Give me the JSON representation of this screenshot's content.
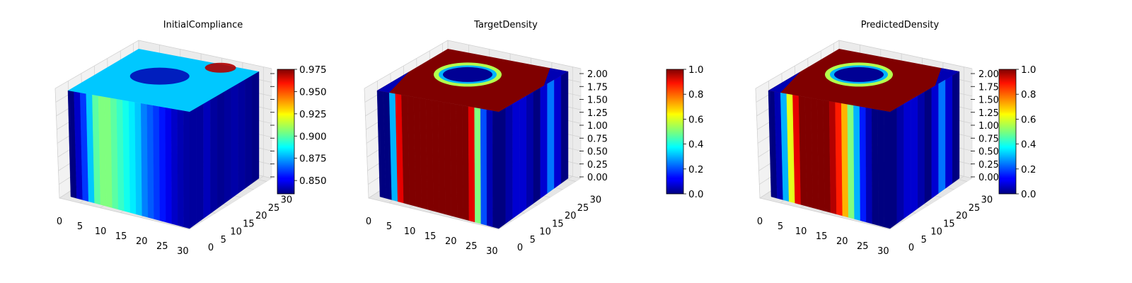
{
  "chart_data": [
    {
      "type": "3d-voxel",
      "title": "InitialCompliance",
      "xticks": [
        "0",
        "5",
        "10",
        "15",
        "20",
        "25",
        "30"
      ],
      "yticks": [
        "0",
        "5",
        "10",
        "15",
        "20",
        "25",
        "30"
      ],
      "zticks": [
        "",
        "",
        "",
        "",
        "",
        "",
        "",
        "",
        ""
      ],
      "xlim": [
        0,
        32
      ],
      "ylim": [
        0,
        32
      ],
      "zlim": [
        0,
        2
      ],
      "colorbar": {
        "min": 0.835,
        "max": 0.975,
        "ticks": [
          "0.850",
          "0.875",
          "0.900",
          "0.925",
          "0.950",
          "0.975"
        ],
        "tick_values": [
          0.85,
          0.875,
          0.9,
          0.925,
          0.95,
          0.975
        ]
      },
      "front_face_profile": [
        0.835,
        0.845,
        0.86,
        0.88,
        0.9,
        0.905,
        0.905,
        0.9,
        0.895,
        0.89,
        0.885,
        0.88,
        0.87,
        0.865,
        0.86,
        0.855,
        0.85,
        0.845,
        0.842,
        0.84
      ],
      "side_face_profile": [
        0.84,
        0.84,
        0.845,
        0.84,
        0.838,
        0.84,
        0.842,
        0.84,
        0.838,
        0.836
      ],
      "colormap": "jet",
      "grid": true
    },
    {
      "type": "3d-voxel",
      "title": "TargetDensity",
      "xticks": [
        "0",
        "5",
        "10",
        "15",
        "20",
        "25",
        "30"
      ],
      "yticks": [
        "0",
        "5",
        "10",
        "15",
        "20",
        "25",
        "30"
      ],
      "zticks": [
        "0.00",
        "0.25",
        "0.50",
        "0.75",
        "1.00",
        "1.25",
        "1.50",
        "1.75",
        "2.00"
      ],
      "xlim": [
        0,
        32
      ],
      "ylim": [
        0,
        32
      ],
      "zlim": [
        0,
        2
      ],
      "colorbar": {
        "min": 0.0,
        "max": 1.0,
        "ticks": [
          "0.0",
          "0.2",
          "0.4",
          "0.6",
          "0.8",
          "1.0"
        ],
        "tick_values": [
          0.0,
          0.2,
          0.4,
          0.6,
          0.8,
          1.0
        ]
      },
      "front_face_profile": [
        0.0,
        0.0,
        0.3,
        0.9,
        1.0,
        1.0,
        1.0,
        1.0,
        1.0,
        1.0,
        1.0,
        1.0,
        1.0,
        1.0,
        1.0,
        0.9,
        0.5,
        0.2,
        0.05,
        0.0
      ],
      "side_face_profile": [
        0.0,
        0.05,
        0.1,
        0.1,
        0.05,
        0.0,
        0.1,
        0.3,
        0.1,
        0.0
      ],
      "colormap": "jet",
      "grid": true
    },
    {
      "type": "3d-voxel",
      "title": "PredictedDensity",
      "xticks": [
        "0",
        "5",
        "10",
        "15",
        "20",
        "25",
        "30"
      ],
      "yticks": [
        "0",
        "5",
        "10",
        "15",
        "20",
        "25",
        "30"
      ],
      "zticks": [
        "0.00",
        "0.25",
        "0.50",
        "0.75",
        "1.00",
        "1.25",
        "1.50",
        "1.75",
        "2.00"
      ],
      "xlim": [
        0,
        32
      ],
      "ylim": [
        0,
        32
      ],
      "zlim": [
        0,
        2
      ],
      "colorbar": {
        "min": 0.0,
        "max": 1.0,
        "ticks": [
          "0.0",
          "0.2",
          "0.4",
          "0.6",
          "0.8",
          "1.0"
        ],
        "tick_values": [
          0.0,
          0.2,
          0.4,
          0.6,
          0.8,
          1.0
        ]
      },
      "front_face_profile": [
        0.0,
        0.05,
        0.3,
        0.6,
        0.9,
        1.0,
        1.0,
        1.0,
        1.0,
        1.0,
        0.95,
        0.85,
        0.7,
        0.5,
        0.3,
        0.15,
        0.05,
        0.0,
        0.0,
        0.0
      ],
      "side_face_profile": [
        0.0,
        0.05,
        0.1,
        0.1,
        0.05,
        0.0,
        0.1,
        0.3,
        0.1,
        0.0
      ],
      "colormap": "jet",
      "grid": true
    }
  ]
}
